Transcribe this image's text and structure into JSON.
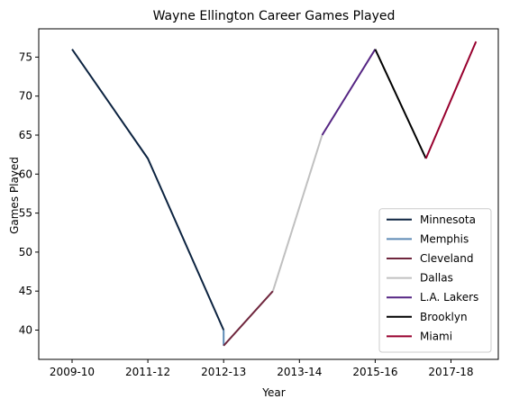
{
  "chart_data": {
    "type": "line",
    "title": "Wayne Ellington Career Games Played",
    "xlabel": "Year",
    "ylabel": "Games Played",
    "x_tick_labels": [
      "2009-10",
      "2011-12",
      "2012-13",
      "2013-14",
      "2015-16",
      "2017-18"
    ],
    "y_ticks": [
      40,
      45,
      50,
      55,
      60,
      65,
      70,
      75
    ],
    "ylim": [
      36,
      79
    ],
    "legend_position": "lower-right",
    "grid": false,
    "series": [
      {
        "name": "Minnesota",
        "color": "#0c2340",
        "points": [
          {
            "x": 0,
            "y": 76
          },
          {
            "x": 1,
            "y": 62
          },
          {
            "x": 2,
            "y": 40
          }
        ]
      },
      {
        "name": "Memphis",
        "color": "#5d8ab5",
        "points": [
          {
            "x": 2,
            "y": 40
          },
          {
            "x": 2,
            "y": 38
          }
        ]
      },
      {
        "name": "Cleveland",
        "color": "#6f263d",
        "points": [
          {
            "x": 2,
            "y": 38
          },
          {
            "x": 2.65,
            "y": 45
          }
        ]
      },
      {
        "name": "Dallas",
        "color": "#c0c0c0",
        "points": [
          {
            "x": 2.65,
            "y": 45
          },
          {
            "x": 3.3,
            "y": 65
          }
        ]
      },
      {
        "name": "L.A. Lakers",
        "color": "#552583",
        "points": [
          {
            "x": 3.3,
            "y": 65
          },
          {
            "x": 4,
            "y": 76
          }
        ]
      },
      {
        "name": "Brooklyn",
        "color": "#000000",
        "points": [
          {
            "x": 4,
            "y": 76
          },
          {
            "x": 4.67,
            "y": 62
          }
        ]
      },
      {
        "name": "Miami",
        "color": "#98002e",
        "points": [
          {
            "x": 4.67,
            "y": 62
          },
          {
            "x": 5.33,
            "y": 77
          }
        ]
      }
    ]
  }
}
